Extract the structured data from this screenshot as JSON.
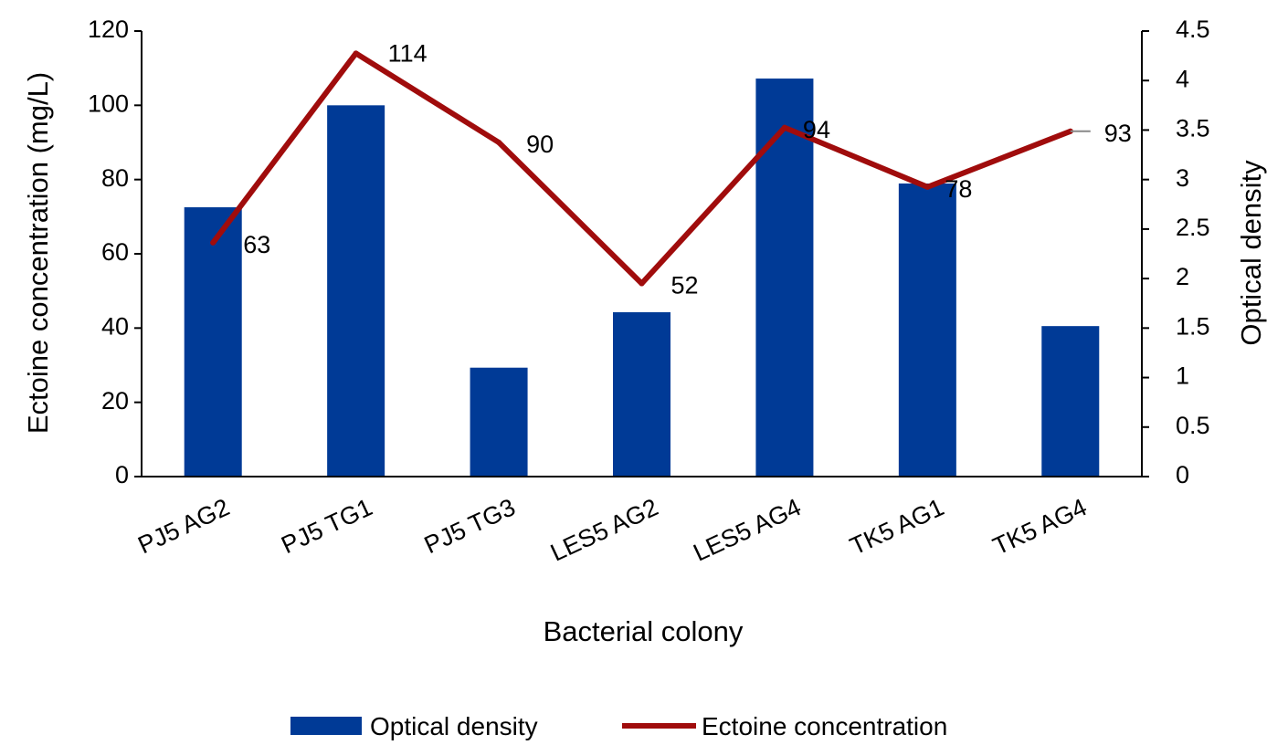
{
  "chart_data": {
    "type": "bar+line",
    "categories": [
      "PJ5 AG2",
      "PJ5 TG1",
      "PJ5 TG3",
      "LES5 AG2",
      "LES5 AG4",
      "TK5 AG1",
      "TK5 AG4"
    ],
    "series": [
      {
        "name": "Optical density",
        "type": "bar",
        "axis": "right",
        "color": "#003A96",
        "values": [
          2.72,
          3.75,
          1.1,
          1.66,
          4.02,
          2.96,
          1.52
        ]
      },
      {
        "name": "Ectoine concentration",
        "type": "line",
        "axis": "left",
        "color": "#A00C0C",
        "values": [
          63,
          114,
          90,
          52,
          94,
          78,
          93
        ],
        "labels": [
          "63",
          "114",
          "90",
          "52",
          "94",
          "78",
          "93"
        ]
      }
    ],
    "xlabel": "Bacterial colony",
    "ylabel_left": "Ectoine concentration (mg/L)",
    "ylabel_right": "Optical density",
    "ylim_left": [
      0,
      120
    ],
    "yticks_left": [
      "0",
      "20",
      "40",
      "60",
      "80",
      "100",
      "120"
    ],
    "ylim_right": [
      0,
      4.5
    ],
    "yticks_right": [
      "0",
      "0.5",
      "1",
      "1.5",
      "2",
      "2.5",
      "3",
      "3.5",
      "4",
      "4.5"
    ],
    "grid": false,
    "legend_position": "bottom"
  }
}
